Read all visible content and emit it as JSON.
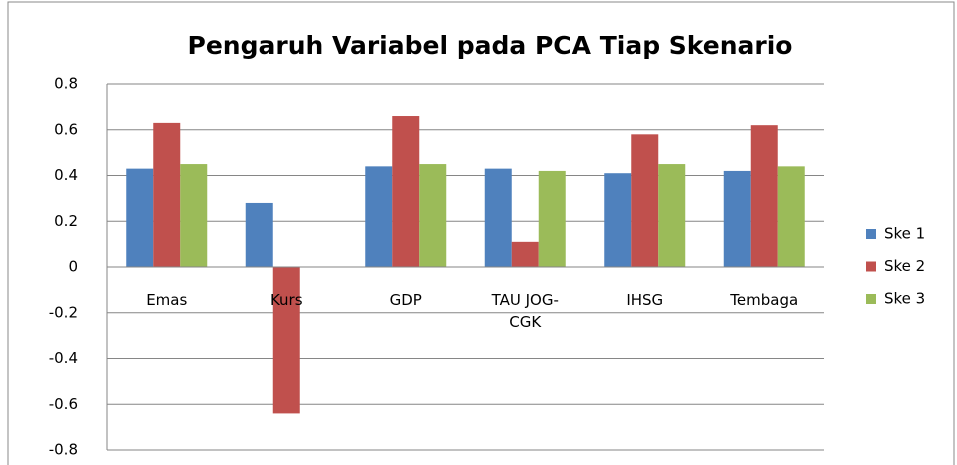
{
  "chart_data": {
    "type": "bar",
    "title": "Pengaruh Variabel pada PCA Tiap Skenario",
    "categories": [
      "Emas",
      "Kurs",
      "GDP",
      "TAU JOG-CGK",
      "IHSG",
      "Tembaga"
    ],
    "series": [
      {
        "name": "Ske 1",
        "color": "#4f81bd",
        "values": [
          0.43,
          0.28,
          0.44,
          0.43,
          0.41,
          0.42
        ]
      },
      {
        "name": "Ske 2",
        "color": "#c0504d",
        "values": [
          0.63,
          -0.64,
          0.66,
          0.11,
          0.58,
          0.62
        ]
      },
      {
        "name": "Ske 3",
        "color": "#9bbb59",
        "values": [
          0.45,
          0,
          0.45,
          0.42,
          0.45,
          0.44
        ]
      }
    ],
    "ylim": [
      -0.8,
      0.8
    ],
    "yticks": [
      -0.8,
      -0.6,
      -0.4,
      -0.2,
      0,
      0.2,
      0.4,
      0.6,
      0.8
    ],
    "grid": true,
    "legend": "right"
  }
}
